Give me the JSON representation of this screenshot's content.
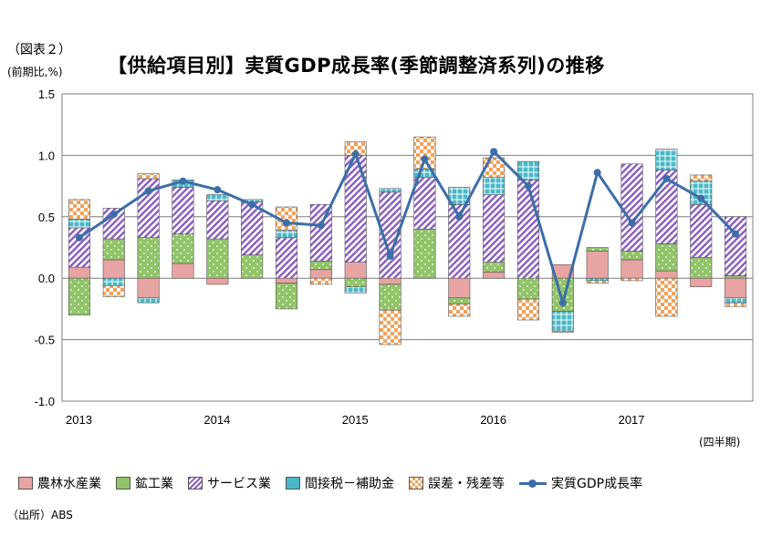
{
  "figure_label": "（図表２）",
  "unit_label": "(前期比,%)",
  "title": "【供給項目別】実質GDP成長率(季節調整済系列)の推移",
  "quarter_note": "(四半期)",
  "source": "（出所）ABS",
  "legend": [
    {
      "key": "agri",
      "label": "農林水産業",
      "icon": "pink-solid"
    },
    {
      "key": "mining",
      "label": "鉱工業",
      "icon": "green-dotted"
    },
    {
      "key": "services",
      "label": "サービス業",
      "icon": "purple-hatched"
    },
    {
      "key": "tax",
      "label": "間接税－補助金",
      "icon": "teal-grid"
    },
    {
      "key": "error",
      "label": "誤差・残差等",
      "icon": "orange-checker"
    },
    {
      "key": "gdp",
      "label": "実質GDP成長率",
      "icon": "blue-line-marker"
    }
  ],
  "chart_data": {
    "type": "bar",
    "stacked": true,
    "y_ticks": [
      "1.5",
      "1.0",
      "0.5",
      "0.0",
      "-0.5",
      "-1.0"
    ],
    "ylim": [
      -1.0,
      1.5
    ],
    "x_year_labels": [
      "2013",
      "2014",
      "2015",
      "2016",
      "2017"
    ],
    "quarters_per_year": 4,
    "n_quarters": 20,
    "series": [
      {
        "name": "農林水産業",
        "key": "agri",
        "color": "#e8a3a3",
        "values": [
          0.09,
          0.15,
          -0.16,
          0.12,
          -0.05,
          0.0,
          -0.04,
          0.07,
          0.13,
          -0.05,
          0.0,
          -0.16,
          0.05,
          0.0,
          0.11,
          0.22,
          0.15,
          0.06,
          -0.07,
          -0.16
        ]
      },
      {
        "name": "鉱工業",
        "key": "mining",
        "color": "#92c46a",
        "values": [
          -0.3,
          0.17,
          0.33,
          0.24,
          0.32,
          0.19,
          -0.21,
          0.07,
          -0.07,
          -0.21,
          0.4,
          -0.05,
          0.08,
          -0.17,
          -0.27,
          0.03,
          0.07,
          0.22,
          0.17,
          0.02
        ]
      },
      {
        "name": "サービス業",
        "key": "services",
        "color": "#9a6bc6",
        "values": [
          0.32,
          0.25,
          0.48,
          0.38,
          0.31,
          0.43,
          0.33,
          0.46,
          0.87,
          0.7,
          0.42,
          0.6,
          0.55,
          0.8,
          0.0,
          0.0,
          0.71,
          0.6,
          0.43,
          0.48
        ]
      },
      {
        "name": "間接税－補助金",
        "key": "tax",
        "color": "#4ab8c8",
        "values": [
          0.07,
          -0.06,
          -0.04,
          0.06,
          0.05,
          0.02,
          0.06,
          0.0,
          -0.05,
          0.03,
          0.07,
          0.14,
          0.14,
          0.15,
          -0.16,
          -0.02,
          0.0,
          0.17,
          0.19,
          -0.04
        ]
      },
      {
        "name": "誤差・残差等",
        "key": "error",
        "color": "#f2a15a",
        "values": [
          0.16,
          -0.09,
          0.04,
          0.0,
          0.0,
          0.0,
          0.19,
          -0.05,
          0.11,
          -0.28,
          0.26,
          -0.1,
          0.16,
          -0.17,
          -0.01,
          -0.02,
          -0.02,
          -0.31,
          0.05,
          -0.03
        ]
      }
    ],
    "line": {
      "name": "実質GDP成長率",
      "color": "#3c6ea8",
      "values": [
        0.33,
        0.52,
        0.71,
        0.79,
        0.72,
        0.6,
        0.45,
        0.43,
        1.01,
        0.18,
        0.97,
        0.5,
        1.03,
        0.75,
        -0.2,
        0.86,
        0.45,
        0.81,
        0.65,
        0.36
      ]
    }
  }
}
